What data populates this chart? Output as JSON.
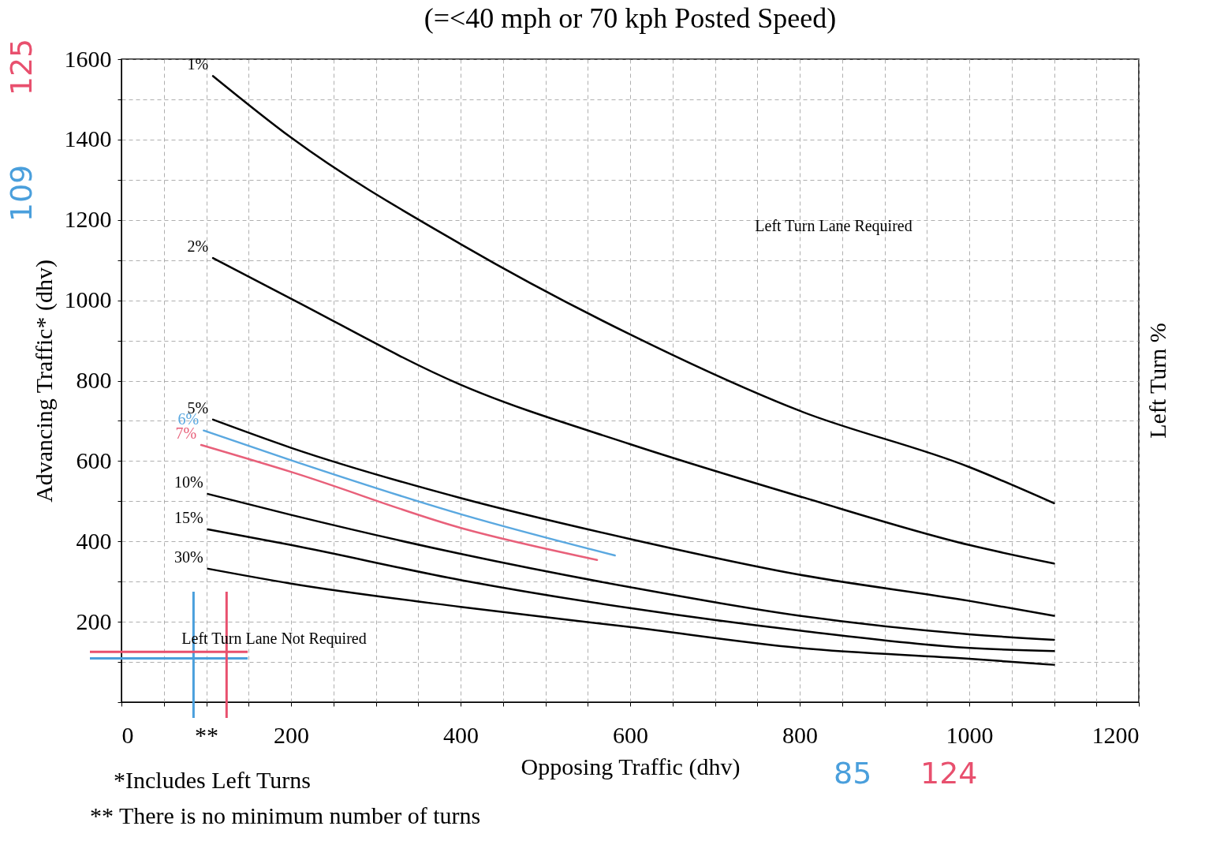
{
  "chart_data": {
    "type": "line",
    "title": "(=<40 mph or 70 kph Posted Speed)",
    "xlabel": "Opposing Traffic (dhv)",
    "ylabel": "Advancing Traffic* (dhv)",
    "y2label": "Left Turn %",
    "series": [
      {
        "name": "1%",
        "color": "#000000",
        "x": [
          108,
          200,
          400,
          600,
          800,
          1000,
          1100
        ],
        "values": [
          1558,
          1405,
          1140,
          915,
          725,
          585,
          495
        ]
      },
      {
        "name": "2%",
        "color": "#000000",
        "x": [
          108,
          200,
          400,
          600,
          800,
          1000,
          1100
        ],
        "values": [
          1105,
          1004,
          790,
          642,
          512,
          391,
          345
        ]
      },
      {
        "name": "5%",
        "color": "#000000",
        "x": [
          108,
          200,
          400,
          600,
          800,
          1000,
          1100
        ],
        "values": [
          703,
          633,
          508,
          406,
          317,
          252,
          215
        ]
      },
      {
        "name": "6%",
        "color": "#5aa8e0",
        "x": [
          97,
          200,
          403,
          582
        ],
        "values": [
          676,
          602,
          466,
          365
        ]
      },
      {
        "name": "7%",
        "color": "#e8607a",
        "x": [
          94,
          200,
          403,
          561
        ],
        "values": [
          640,
          573,
          432,
          354
        ]
      },
      {
        "name": "10%",
        "color": "#000000",
        "x": [
          102,
          200,
          400,
          600,
          800,
          1000,
          1100
        ],
        "values": [
          518,
          466,
          369,
          286,
          215,
          169,
          155
        ]
      },
      {
        "name": "15%",
        "color": "#000000",
        "x": [
          102,
          200,
          400,
          600,
          800,
          1000,
          1100
        ],
        "values": [
          430,
          391,
          304,
          234,
          178,
          135,
          127
        ]
      },
      {
        "name": "30%",
        "color": "#000000",
        "x": [
          102,
          200,
          400,
          600,
          800,
          1000,
          1100
        ],
        "values": [
          332,
          295,
          237,
          187,
          135,
          108,
          93
        ]
      }
    ],
    "xlim": [
      0,
      1200
    ],
    "xticks": [
      0,
      {
        "value": 50,
        "label": null
      },
      {
        "value": 100,
        "label": "**"
      },
      {
        "value": 150,
        "label": null
      },
      200,
      {
        "value": 250,
        "label": null
      },
      {
        "value": 300,
        "label": null
      },
      {
        "value": 350,
        "label": null
      },
      400,
      {
        "value": 450,
        "label": null
      },
      {
        "value": 500,
        "label": null
      },
      {
        "value": 550,
        "label": null
      },
      600,
      {
        "value": 650,
        "label": null
      },
      {
        "value": 700,
        "label": null
      },
      {
        "value": 750,
        "label": null
      },
      800,
      {
        "value": 850,
        "label": null
      },
      {
        "value": 900,
        "label": null
      },
      {
        "value": 950,
        "label": null
      },
      1000,
      {
        "value": 1050,
        "label": null
      },
      {
        "value": 1100,
        "label": null
      },
      {
        "value": 1150,
        "label": null
      },
      1200
    ],
    "ylim": [
      0,
      1600
    ],
    "yticks": [
      {
        "value": 0,
        "label": null
      },
      {
        "value": 100,
        "label": null
      },
      200,
      {
        "value": 300,
        "label": null
      },
      400,
      {
        "value": 500,
        "label": null
      },
      600,
      {
        "value": 700,
        "label": null
      },
      800,
      {
        "value": 900,
        "label": null
      },
      1000,
      {
        "value": 1100,
        "label": null
      },
      1200,
      {
        "value": 1300,
        "label": null
      },
      1400,
      {
        "value": 1500,
        "label": null
      },
      1600
    ],
    "grid": true,
    "line_style": "solid",
    "ref_lines": [
      {
        "axis": "x",
        "value": 85,
        "label": "85",
        "color": "#4a9fdc"
      },
      {
        "axis": "y",
        "value": 109,
        "label": "109",
        "color": "#4a9fdc"
      },
      {
        "axis": "x",
        "value": 124,
        "label": "124",
        "color": "#e8506e"
      },
      {
        "axis": "y",
        "value": 125,
        "label": "125",
        "color": "#e8506e"
      }
    ],
    "annotations": [
      "Left Turn Lane Required",
      "Left Turn Lane Not Required",
      "*Includes Left Turns",
      "** There is no minimum number of turns"
    ]
  }
}
